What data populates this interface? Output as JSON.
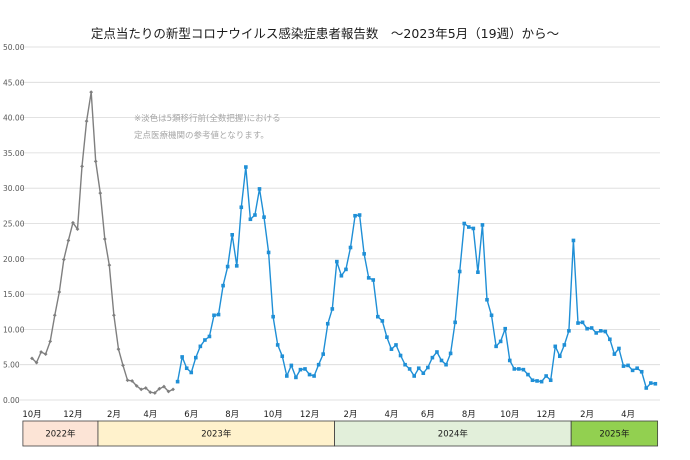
{
  "chart_data": {
    "type": "line",
    "title": "定点当たりの新型コロナウイルス感染症患者報告数　～2023年5月（19週）から～",
    "note_lines": [
      "※淡色は5類移行前(全数把握)における",
      "定点医療機関の参考値となります。"
    ],
    "ylim": [
      0,
      50
    ],
    "y_ticks": [
      "50.00",
      "45.00",
      "40.00",
      "35.00",
      "30.00",
      "25.00",
      "20.00",
      "15.00",
      "10.00",
      "5.00",
      "0.00"
    ],
    "month_ticks": [
      {
        "label": "10月",
        "week": 0
      },
      {
        "label": "12月",
        "week": 9
      },
      {
        "label": "2月",
        "week": 18
      },
      {
        "label": "4月",
        "week": 26
      },
      {
        "label": "6月",
        "week": 35
      },
      {
        "label": "8月",
        "week": 44
      },
      {
        "label": "10月",
        "week": 53
      },
      {
        "label": "12月",
        "week": 61
      },
      {
        "label": "2月",
        "week": 70
      },
      {
        "label": "4月",
        "week": 79
      },
      {
        "label": "6月",
        "week": 87
      },
      {
        "label": "8月",
        "week": 96
      },
      {
        "label": "10月",
        "week": 105
      },
      {
        "label": "12月",
        "week": 113
      },
      {
        "label": "2月",
        "week": 122
      },
      {
        "label": "4月",
        "week": 131
      }
    ],
    "years": [
      {
        "label": "2022年",
        "start_week": -2,
        "end_week": 14.5,
        "color": "#fce4d6"
      },
      {
        "label": "2023年",
        "start_week": 14.5,
        "end_week": 66.5,
        "color": "#fff2cc"
      },
      {
        "label": "2024年",
        "start_week": 66.5,
        "end_week": 118.5,
        "color": "#e2efda"
      },
      {
        "label": "2025年",
        "start_week": 118.5,
        "end_week": 137.5,
        "color": "#92d050"
      }
    ],
    "series": [
      {
        "start_week": 0,
        "color": "#7f7f7f",
        "values": [
          5.9,
          5.3,
          6.8,
          6.5,
          8.3,
          12.0,
          15.3,
          19.9,
          22.6,
          25.1,
          24.2,
          33.1,
          39.5,
          43.6,
          33.8,
          29.3,
          22.8,
          19.1,
          12.0,
          7.2,
          4.9,
          2.8,
          2.7,
          2.0,
          1.5,
          1.7,
          1.1,
          1.0,
          1.6,
          1.9,
          1.2,
          1.5
        ]
      },
      {
        "start_week": 32,
        "color": "#1f8fd6",
        "values": [
          2.6,
          6.1,
          4.5,
          3.9,
          6.0,
          7.6,
          8.5,
          9.0,
          12.0,
          12.1,
          16.2,
          18.9,
          23.4,
          19.0,
          27.3,
          33.0,
          25.6,
          26.2,
          29.9,
          25.9,
          20.9,
          11.8,
          7.8,
          6.2,
          3.4,
          4.9,
          3.2,
          4.3,
          4.4,
          3.6,
          3.4,
          5.0,
          6.5,
          10.8,
          12.9,
          19.6,
          17.6,
          18.5,
          21.6,
          26.1,
          26.2,
          20.7,
          17.3,
          17.0,
          11.8,
          11.2,
          8.9,
          7.2,
          7.8,
          6.3,
          5.0,
          4.4,
          3.4,
          4.5,
          3.8,
          4.6,
          6.0,
          6.8,
          5.6,
          5.0,
          6.6,
          11.0,
          18.2,
          25.0,
          24.5,
          24.3,
          18.1,
          24.8,
          14.2,
          12.0,
          7.6,
          8.3,
          10.1,
          5.6,
          4.4,
          4.4,
          4.3,
          3.6,
          2.8,
          2.7,
          2.6,
          3.4,
          2.8,
          7.6,
          6.2,
          7.8,
          9.8,
          22.6,
          10.9,
          11.0,
          10.1,
          10.2,
          9.5,
          9.8,
          9.7,
          8.6,
          6.5,
          7.3,
          4.8,
          4.9,
          4.2,
          4.5,
          4.0,
          1.7,
          2.4,
          2.3
        ]
      }
    ]
  }
}
